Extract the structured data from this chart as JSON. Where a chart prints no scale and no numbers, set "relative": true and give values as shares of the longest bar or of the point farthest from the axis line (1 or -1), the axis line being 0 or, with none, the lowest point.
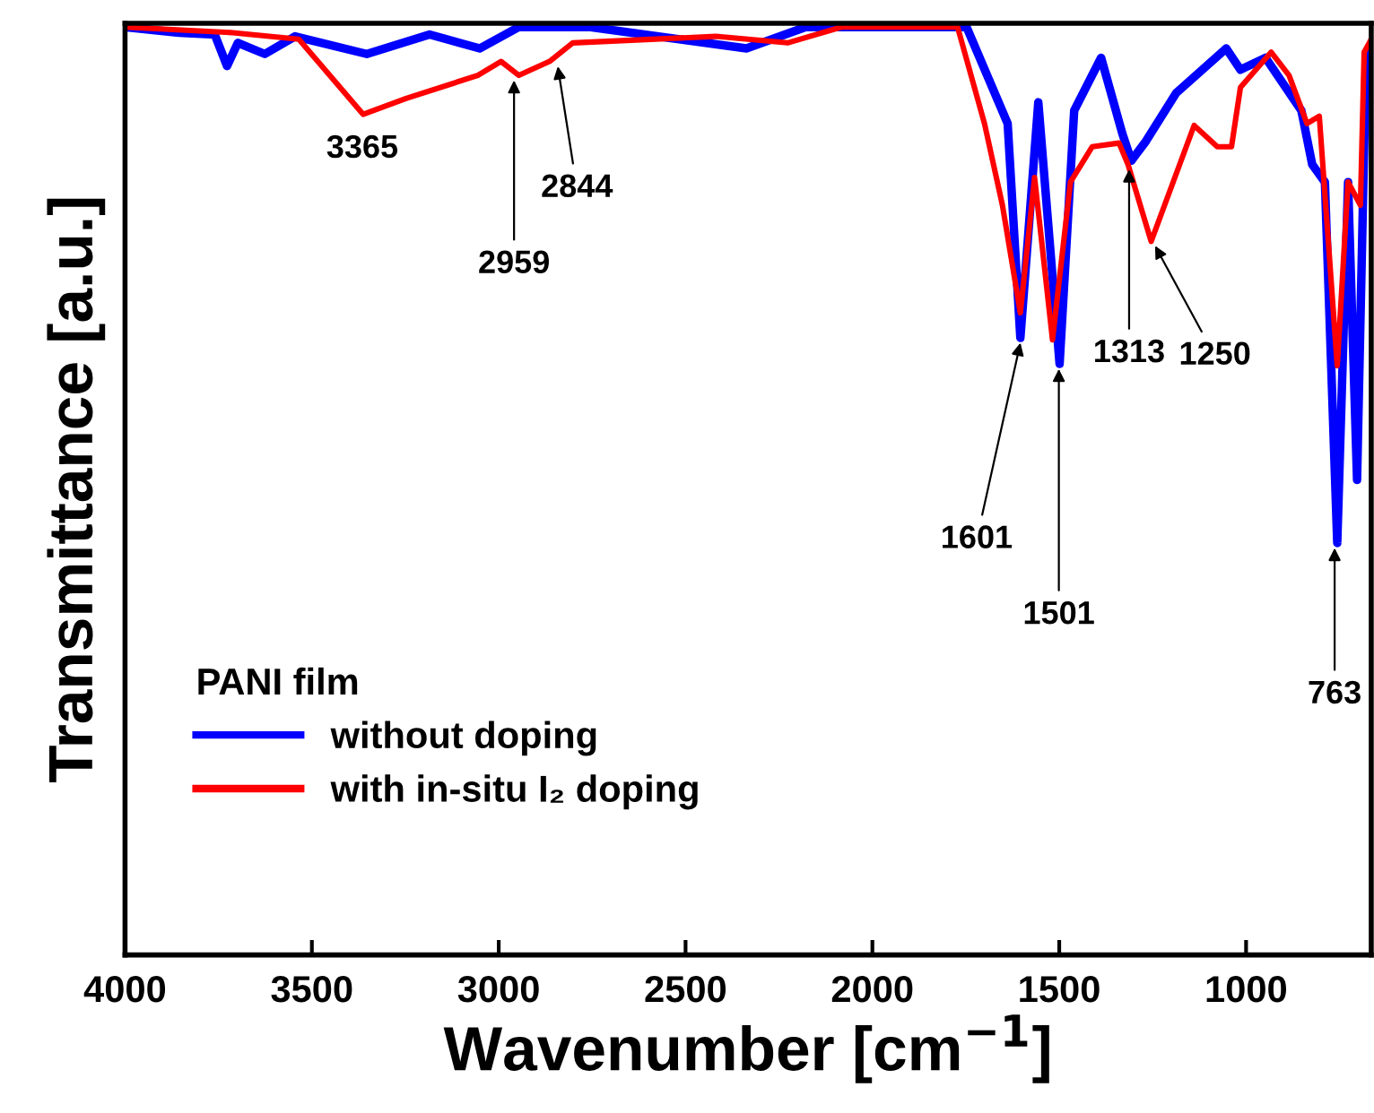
{
  "chart_data": {
    "type": "line",
    "relative": true,
    "xlabel": "Wavenumber [cm$^{−1}$]",
    "ylabel": "Transmittance [a.u.]",
    "legend_title": "PANI film",
    "legend": "bottom left",
    "grid": false,
    "marker": "none",
    "line_style": "solid",
    "xlim": [
      4000,
      665
    ],
    "xticks": [
      4000,
      3500,
      3000,
      2500,
      2000,
      1500,
      1000
    ],
    "series": [
      {
        "name": "without doping",
        "color": "#0000ff",
        "x": [
          4000,
          3856,
          3760,
          3727,
          3698,
          3626,
          3545,
          3353,
          3185,
          3051,
          2946,
          2754,
          2337,
          2179,
          1748,
          1638,
          1604,
          1556,
          1499,
          1460,
          1388,
          1331,
          1307,
          1268,
          1187,
          1053,
          1015,
          948,
          852,
          823,
          789,
          756,
          727,
          703,
          679,
          665
        ],
        "values": [
          1.0,
          0.994,
          0.992,
          0.958,
          0.983,
          0.971,
          0.99,
          0.971,
          0.992,
          0.977,
          1.0,
          1.0,
          0.977,
          1.0,
          1.0,
          0.896,
          0.665,
          0.919,
          0.637,
          0.91,
          0.967,
          0.885,
          0.856,
          0.877,
          0.929,
          0.977,
          0.954,
          0.967,
          0.91,
          0.852,
          0.833,
          0.444,
          0.833,
          0.512,
          0.967,
          0.977
        ]
      },
      {
        "name": "with in-situ I₂ doping",
        "color": "#ff0000",
        "x": [
          4000,
          3712,
          3535,
          3363,
          3248,
          3056,
          2994,
          2946,
          2864,
          2802,
          2419,
          2227,
          2083,
          1772,
          1700,
          1652,
          1604,
          1566,
          1518,
          1470,
          1412,
          1340,
          1316,
          1254,
          1139,
          1077,
          1039,
          1015,
          933,
          885,
          837,
          804,
          756,
          727,
          694,
          684,
          665
        ],
        "values": [
          1.0,
          0.994,
          0.987,
          0.906,
          0.923,
          0.948,
          0.963,
          0.948,
          0.963,
          0.983,
          0.99,
          0.983,
          1.0,
          1.0,
          0.896,
          0.808,
          0.692,
          0.838,
          0.663,
          0.833,
          0.871,
          0.875,
          0.852,
          0.769,
          0.894,
          0.871,
          0.871,
          0.935,
          0.973,
          0.948,
          0.896,
          0.904,
          0.635,
          0.833,
          0.808,
          0.973,
          0.987
        ]
      }
    ],
    "annotations": [
      {
        "text": "3365",
        "x": 3365,
        "y": 0.906
      },
      {
        "text": "2959",
        "x": 2959,
        "y": 0.948
      },
      {
        "text": "2844",
        "x": 2844,
        "y": 0.963
      },
      {
        "text": "1601",
        "x": 1601,
        "y": 0.665
      },
      {
        "text": "1501",
        "x": 1501,
        "y": 0.637
      },
      {
        "text": "1313",
        "x": 1313,
        "y": 0.852
      },
      {
        "text": "1250",
        "x": 1250,
        "y": 0.769
      },
      {
        "text": "763",
        "x": 763,
        "y": 0.444
      }
    ]
  }
}
